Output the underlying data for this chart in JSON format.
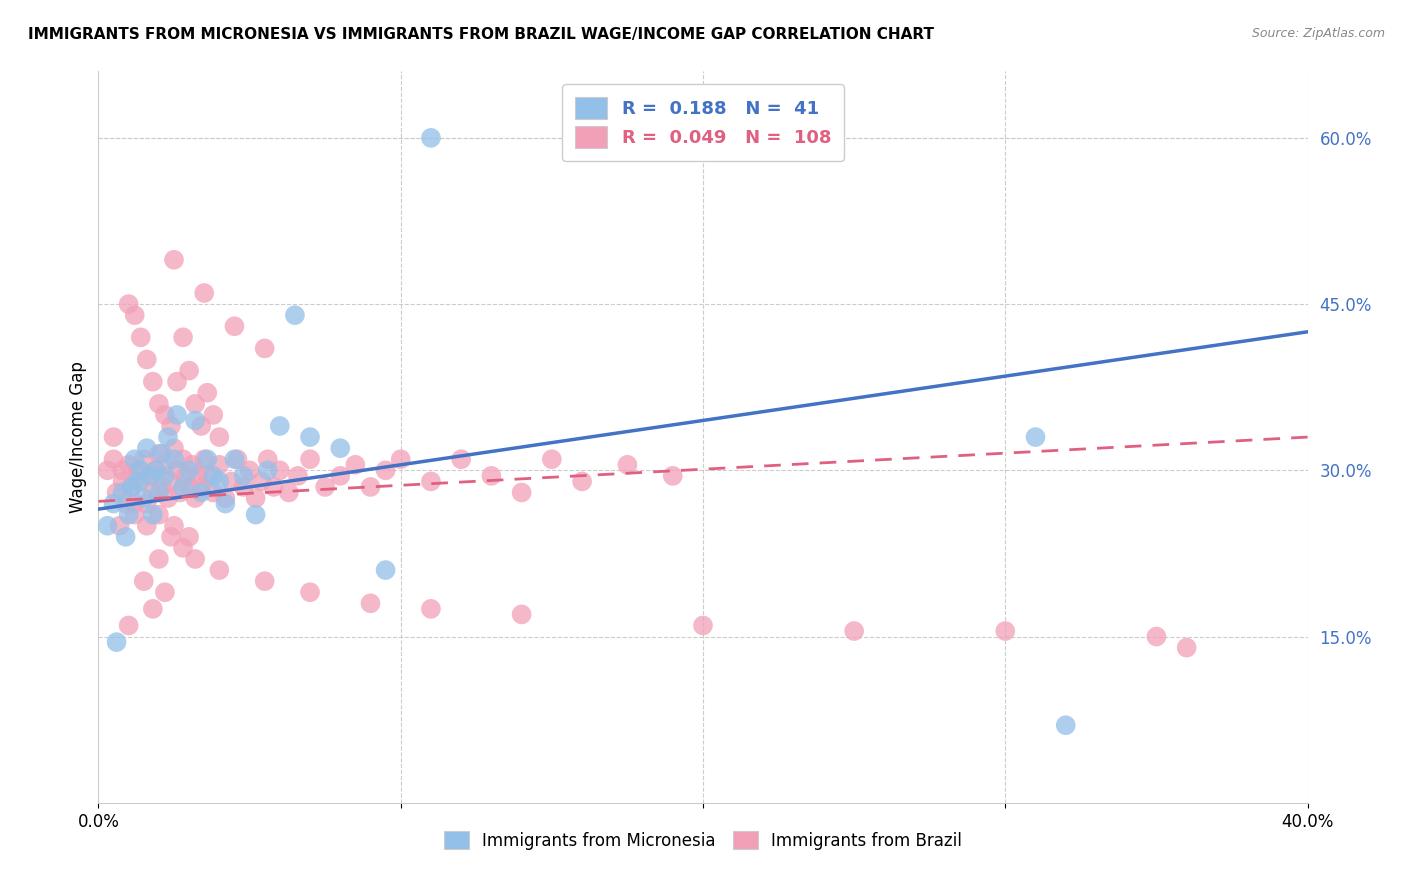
{
  "title": "IMMIGRANTS FROM MICRONESIA VS IMMIGRANTS FROM BRAZIL WAGE/INCOME GAP CORRELATION CHART",
  "source": "Source: ZipAtlas.com",
  "ylabel": "Wage/Income Gap",
  "xlim": [
    0.0,
    0.4
  ],
  "ylim": [
    0.0,
    0.66
  ],
  "xtick_positions": [
    0.0,
    0.1,
    0.2,
    0.3,
    0.4
  ],
  "xtick_labels": [
    "0.0%",
    "",
    "",
    "",
    "40.0%"
  ],
  "ytick_labels_right": [
    "15.0%",
    "30.0%",
    "45.0%",
    "60.0%"
  ],
  "ytick_positions_right": [
    0.15,
    0.3,
    0.45,
    0.6
  ],
  "micronesia_color": "#92C0E8",
  "brazil_color": "#F2A0B8",
  "micronesia_R": 0.188,
  "micronesia_N": 41,
  "brazil_R": 0.049,
  "brazil_N": 108,
  "trend_micronesia_color": "#4472C4",
  "trend_brazil_color": "#E06080",
  "micronesia_trend_x0": 0.0,
  "micronesia_trend_y0": 0.265,
  "micronesia_trend_x1": 0.4,
  "micronesia_trend_y1": 0.425,
  "brazil_trend_x0": 0.0,
  "brazil_trend_y0": 0.272,
  "brazil_trend_x1": 0.4,
  "brazil_trend_y1": 0.33,
  "micronesia_x": [
    0.003,
    0.005,
    0.006,
    0.008,
    0.009,
    0.01,
    0.011,
    0.012,
    0.013,
    0.014,
    0.015,
    0.016,
    0.017,
    0.018,
    0.019,
    0.02,
    0.021,
    0.022,
    0.023,
    0.025,
    0.026,
    0.028,
    0.03,
    0.032,
    0.034,
    0.036,
    0.038,
    0.04,
    0.042,
    0.045,
    0.048,
    0.052,
    0.056,
    0.06,
    0.065,
    0.07,
    0.08,
    0.095,
    0.11,
    0.31,
    0.32
  ],
  "micronesia_y": [
    0.25,
    0.27,
    0.145,
    0.28,
    0.24,
    0.26,
    0.285,
    0.31,
    0.29,
    0.3,
    0.275,
    0.32,
    0.295,
    0.26,
    0.3,
    0.28,
    0.315,
    0.295,
    0.33,
    0.31,
    0.35,
    0.285,
    0.3,
    0.345,
    0.28,
    0.31,
    0.295,
    0.29,
    0.27,
    0.31,
    0.295,
    0.26,
    0.3,
    0.34,
    0.44,
    0.33,
    0.32,
    0.21,
    0.6,
    0.33,
    0.07
  ],
  "brazil_x": [
    0.003,
    0.005,
    0.006,
    0.007,
    0.008,
    0.009,
    0.01,
    0.011,
    0.012,
    0.013,
    0.014,
    0.015,
    0.016,
    0.017,
    0.018,
    0.019,
    0.02,
    0.021,
    0.022,
    0.023,
    0.024,
    0.025,
    0.026,
    0.027,
    0.028,
    0.029,
    0.03,
    0.031,
    0.032,
    0.033,
    0.034,
    0.035,
    0.036,
    0.038,
    0.04,
    0.042,
    0.044,
    0.046,
    0.048,
    0.05,
    0.052,
    0.054,
    0.056,
    0.058,
    0.06,
    0.063,
    0.066,
    0.07,
    0.075,
    0.08,
    0.085,
    0.09,
    0.095,
    0.1,
    0.11,
    0.12,
    0.13,
    0.14,
    0.15,
    0.16,
    0.175,
    0.19,
    0.01,
    0.012,
    0.014,
    0.016,
    0.018,
    0.02,
    0.022,
    0.024,
    0.026,
    0.028,
    0.03,
    0.032,
    0.034,
    0.036,
    0.038,
    0.04,
    0.025,
    0.03,
    0.015,
    0.02,
    0.01,
    0.018,
    0.022,
    0.005,
    0.008,
    0.012,
    0.016,
    0.02,
    0.024,
    0.028,
    0.032,
    0.04,
    0.055,
    0.07,
    0.09,
    0.11,
    0.14,
    0.2,
    0.25,
    0.3,
    0.35,
    0.36,
    0.025,
    0.035,
    0.045,
    0.055
  ],
  "brazil_y": [
    0.3,
    0.31,
    0.28,
    0.25,
    0.29,
    0.27,
    0.305,
    0.285,
    0.26,
    0.3,
    0.29,
    0.31,
    0.27,
    0.295,
    0.28,
    0.3,
    0.315,
    0.285,
    0.305,
    0.275,
    0.29,
    0.32,
    0.3,
    0.28,
    0.31,
    0.295,
    0.285,
    0.305,
    0.275,
    0.295,
    0.285,
    0.31,
    0.295,
    0.28,
    0.305,
    0.275,
    0.29,
    0.31,
    0.285,
    0.3,
    0.275,
    0.29,
    0.31,
    0.285,
    0.3,
    0.28,
    0.295,
    0.31,
    0.285,
    0.295,
    0.305,
    0.285,
    0.3,
    0.31,
    0.29,
    0.31,
    0.295,
    0.28,
    0.31,
    0.29,
    0.305,
    0.295,
    0.45,
    0.44,
    0.42,
    0.4,
    0.38,
    0.36,
    0.35,
    0.34,
    0.38,
    0.42,
    0.39,
    0.36,
    0.34,
    0.37,
    0.35,
    0.33,
    0.25,
    0.24,
    0.2,
    0.22,
    0.16,
    0.175,
    0.19,
    0.33,
    0.3,
    0.27,
    0.25,
    0.26,
    0.24,
    0.23,
    0.22,
    0.21,
    0.2,
    0.19,
    0.18,
    0.175,
    0.17,
    0.16,
    0.155,
    0.155,
    0.15,
    0.14,
    0.49,
    0.46,
    0.43,
    0.41
  ],
  "legend_labels": [
    "Immigrants from Micronesia",
    "Immigrants from Brazil"
  ],
  "background_color": "#ffffff",
  "grid_color": "#cccccc"
}
